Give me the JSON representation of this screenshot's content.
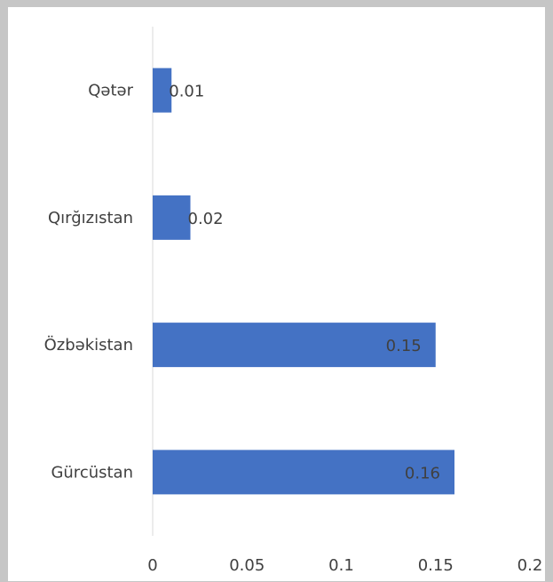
{
  "chart_data": {
    "type": "bar",
    "orientation": "horizontal",
    "categories": [
      "Qətər",
      "Qırğızıstan",
      "Özbəkistan",
      "Gürcüstan"
    ],
    "values": [
      0.01,
      0.02,
      0.15,
      0.16
    ],
    "color": "#4472c4",
    "xlim": [
      0,
      0.2
    ],
    "xticks": [
      0,
      0.05,
      0.1,
      0.15,
      0.2
    ],
    "grid": false
  }
}
